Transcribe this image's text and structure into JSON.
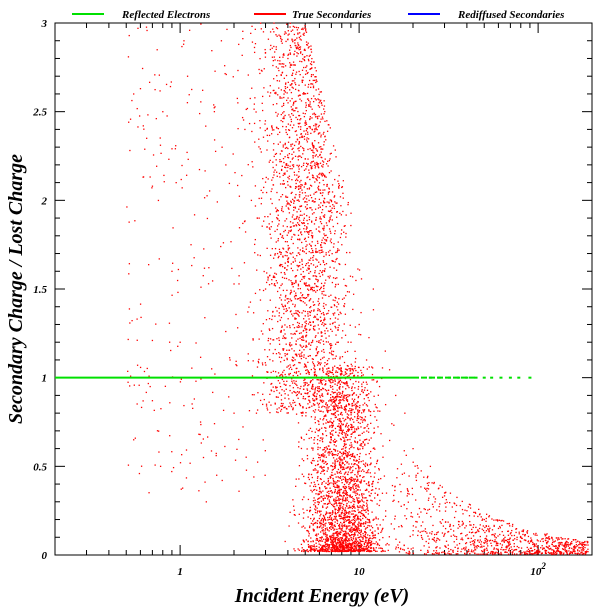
{
  "chart_data": {
    "type": "scatter",
    "title": "",
    "xlabel": "Incident Energy (eV)",
    "ylabel": "Secondary Charge / Lost Charge",
    "x_scale": "log",
    "xlim": [
      0.2,
      200
    ],
    "ylim": [
      0,
      3
    ],
    "x_ticks": [
      {
        "value": 1,
        "label": "1"
      },
      {
        "value": 10,
        "label": "10"
      },
      {
        "value": 100,
        "label": "10",
        "exponent": "2"
      }
    ],
    "y_ticks": [
      {
        "value": 0,
        "label": "0"
      },
      {
        "value": 0.5,
        "label": "0.5"
      },
      {
        "value": 1,
        "label": "1"
      },
      {
        "value": 1.5,
        "label": "1.5"
      },
      {
        "value": 2,
        "label": "2"
      },
      {
        "value": 2.5,
        "label": "2.5"
      },
      {
        "value": 3,
        "label": "3"
      }
    ],
    "legend_position": "top",
    "series": [
      {
        "name": "Reflected Electrons",
        "color": "#00e000",
        "x_range": [
          0.2,
          90
        ],
        "y": 1.0,
        "points": [
          [
            25,
            1.0
          ],
          [
            28,
            1.0
          ],
          [
            32,
            1.0
          ],
          [
            36,
            1.0
          ],
          [
            40,
            1.0
          ],
          [
            45,
            1.0
          ],
          [
            50,
            1.0
          ],
          [
            55,
            1.0
          ],
          [
            62,
            1.0
          ],
          [
            70,
            1.0
          ],
          [
            78,
            1.0
          ],
          [
            90,
            1.0
          ]
        ]
      },
      {
        "name": "True Secondaries",
        "color": "#ff0000",
        "points": [
          [
            0.55,
            2.6
          ],
          [
            0.6,
            2.63
          ],
          [
            0.65,
            2.35
          ],
          [
            0.7,
            2.08
          ],
          [
            0.68,
            0.95
          ],
          [
            0.55,
            0.65
          ],
          [
            0.8,
            2.5
          ],
          [
            0.85,
            1.0
          ],
          [
            0.9,
            1.6
          ],
          [
            0.95,
            2.1
          ],
          [
            1.0,
            1.2
          ],
          [
            1.05,
            2.9
          ],
          [
            1.1,
            2.7
          ],
          [
            1.15,
            1.75
          ],
          [
            1.2,
            0.88
          ],
          [
            1.3,
            0.75
          ],
          [
            1.35,
            0.55
          ],
          [
            1.4,
            0.3
          ],
          [
            1.5,
            1.05
          ],
          [
            1.6,
            0.45
          ],
          [
            1.7,
            2.9
          ],
          [
            1.8,
            2.2
          ],
          [
            1.9,
            1.1
          ],
          [
            2.0,
            0.8
          ],
          [
            2.1,
            2.55
          ],
          [
            2.3,
            2.4
          ],
          [
            2.5,
            2.0
          ],
          [
            2.7,
            1.9
          ],
          [
            3.0,
            1.5
          ],
          [
            3.2,
            2.95
          ],
          [
            3.5,
            1.7
          ],
          [
            3.8,
            2.5
          ],
          [
            4.0,
            2.8
          ],
          [
            4.3,
            2.2
          ],
          [
            4.6,
            1.95
          ],
          [
            5.0,
            2.65
          ],
          [
            5.5,
            1.8
          ],
          [
            6.0,
            2.3
          ],
          [
            6.5,
            1.55
          ],
          [
            7.0,
            2.0
          ],
          [
            7.5,
            1.4
          ],
          [
            8.0,
            1.75
          ],
          [
            9.0,
            1.2
          ],
          [
            10.0,
            1.3
          ],
          [
            11.0,
            1.1
          ],
          [
            12.0,
            1.5
          ],
          [
            13.0,
            0.95
          ],
          [
            14.0,
            1.15
          ],
          [
            16.0,
            0.9
          ],
          [
            18.0,
            0.8
          ],
          [
            20,
            0.6
          ],
          [
            25,
            0.5
          ],
          [
            30,
            0.35
          ],
          [
            35,
            0.28
          ],
          [
            40,
            0.25
          ],
          [
            50,
            0.2
          ],
          [
            60,
            0.15
          ],
          [
            70,
            0.12
          ],
          [
            80,
            0.1
          ],
          [
            100,
            0.08
          ],
          [
            120,
            0.06
          ],
          [
            140,
            0.05
          ],
          [
            160,
            0.04
          ],
          [
            180,
            0.03
          ]
        ]
      },
      {
        "name": "Rediffused Secondaries",
        "color": "#0000ff",
        "points": []
      }
    ]
  }
}
